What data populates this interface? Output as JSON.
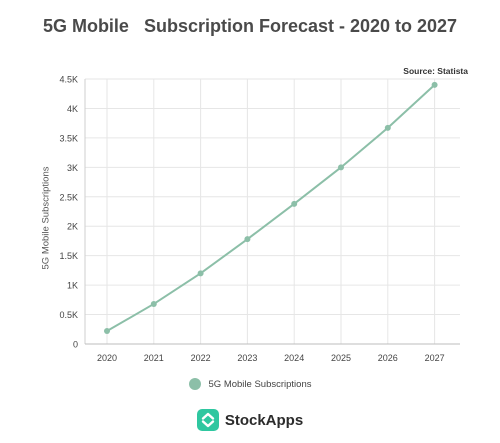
{
  "chart_data": {
    "type": "line",
    "title": "5G Mobile   Subscription Forecast - 2020 to 2027",
    "source": "Source: Statista",
    "ylabel": "5G Mobile Subscriptions",
    "xlabel": "",
    "categories": [
      "2020",
      "2021",
      "2022",
      "2023",
      "2024",
      "2025",
      "2026",
      "2027"
    ],
    "y_ticks": [
      0,
      500,
      1000,
      1500,
      2000,
      2500,
      3000,
      3500,
      4000,
      4500
    ],
    "y_tick_labels": [
      "0",
      "0.5K",
      "1K",
      "1.5K",
      "2K",
      "2.5K",
      "3K",
      "3.5K",
      "4K",
      "4.5K"
    ],
    "ylim": [
      0,
      4500
    ],
    "series": [
      {
        "name": "5G Mobile Subscriptions",
        "values": [
          220,
          680,
          1200,
          1780,
          2380,
          3000,
          3670,
          4400
        ]
      }
    ],
    "grid": true,
    "legend_position": "bottom",
    "line_color": "#8cbfa8",
    "marker_color": "#8cbfa8"
  },
  "logo": {
    "text": "StockApps",
    "color": "#2fc7a0",
    "icon": "stockapps-logo-icon"
  }
}
